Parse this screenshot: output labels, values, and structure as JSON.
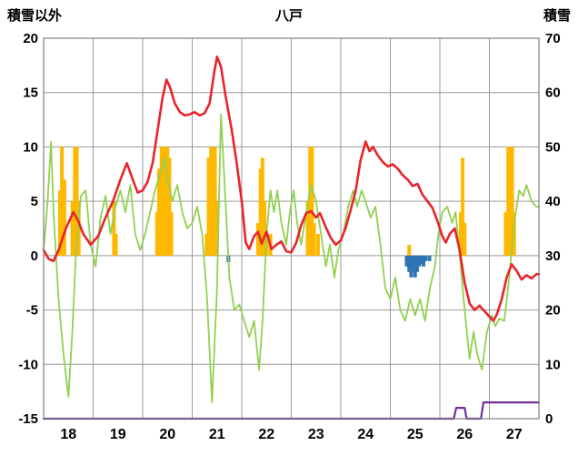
{
  "header": {
    "left_axis_title": "積雪以外",
    "chart_title": "八戸",
    "right_axis_title": "積雪"
  },
  "chart_data": {
    "type": "line",
    "title": "八戸",
    "grid": true,
    "legend": "none",
    "left_axis": {
      "label": "積雪以外",
      "min": -15,
      "max": 20,
      "ticks": [
        20,
        15,
        10,
        5,
        0,
        -5,
        -10,
        -15
      ]
    },
    "right_axis": {
      "label": "積雪",
      "min": 0,
      "max": 70,
      "ticks": [
        70,
        60,
        50,
        40,
        30,
        20,
        10,
        0
      ]
    },
    "x_axis": {
      "min": 18,
      "max": 28,
      "tick_labels": [
        "18",
        "19",
        "20",
        "21",
        "22",
        "23",
        "24",
        "25",
        "26",
        "27"
      ]
    },
    "colors": {
      "grid": "#999999",
      "frame": "#808080",
      "text": "#000000"
    },
    "series": [
      {
        "name": "orange-bars",
        "type": "bar",
        "direction": "up",
        "axis": "left",
        "color": "#ffb800",
        "points": [
          [
            18.33,
            6
          ],
          [
            18.37,
            10
          ],
          [
            18.42,
            7
          ],
          [
            18.58,
            5
          ],
          [
            18.63,
            10
          ],
          [
            18.67,
            10
          ],
          [
            18.71,
            5
          ],
          [
            19.42,
            5
          ],
          [
            19.46,
            2
          ],
          [
            20.29,
            4
          ],
          [
            20.33,
            8
          ],
          [
            20.38,
            10
          ],
          [
            20.42,
            10
          ],
          [
            20.46,
            10
          ],
          [
            20.5,
            10
          ],
          [
            20.54,
            9
          ],
          [
            20.58,
            4
          ],
          [
            21.29,
            2
          ],
          [
            21.33,
            9
          ],
          [
            21.38,
            10
          ],
          [
            21.42,
            10
          ],
          [
            21.46,
            10
          ],
          [
            21.5,
            5
          ],
          [
            22.33,
            3
          ],
          [
            22.38,
            8
          ],
          [
            22.42,
            9
          ],
          [
            22.46,
            5
          ],
          [
            22.5,
            2
          ],
          [
            22.58,
            2
          ],
          [
            23.33,
            5
          ],
          [
            23.38,
            10
          ],
          [
            23.42,
            10
          ],
          [
            23.46,
            3
          ],
          [
            23.54,
            2
          ],
          [
            25.38,
            1
          ],
          [
            26.42,
            4
          ],
          [
            26.46,
            9
          ],
          [
            26.5,
            3
          ],
          [
            27.33,
            4
          ],
          [
            27.38,
            10
          ],
          [
            27.42,
            10
          ],
          [
            27.46,
            10
          ],
          [
            27.5,
            4
          ]
        ]
      },
      {
        "name": "blue-bars",
        "type": "bar",
        "direction": "down",
        "axis": "left",
        "color": "#2e75b6",
        "points": [
          [
            21.73,
            0.6
          ],
          [
            25.33,
            1
          ],
          [
            25.38,
            1.5
          ],
          [
            25.42,
            2
          ],
          [
            25.46,
            1.5
          ],
          [
            25.5,
            2
          ],
          [
            25.54,
            1.5
          ],
          [
            25.58,
            1
          ],
          [
            25.63,
            0.8
          ],
          [
            25.67,
            1
          ],
          [
            25.71,
            0.5
          ],
          [
            25.79,
            0.5
          ]
        ]
      },
      {
        "name": "green-line",
        "type": "line",
        "axis": "left",
        "color": "#92d050",
        "width": 1.8,
        "points": [
          [
            18.0,
            0.5
          ],
          [
            18.08,
            5
          ],
          [
            18.15,
            10.5
          ],
          [
            18.2,
            4
          ],
          [
            18.3,
            -4
          ],
          [
            18.4,
            -9
          ],
          [
            18.5,
            -13
          ],
          [
            18.58,
            -7
          ],
          [
            18.65,
            0
          ],
          [
            18.75,
            5.5
          ],
          [
            18.85,
            6
          ],
          [
            18.95,
            1
          ],
          [
            19.05,
            -1
          ],
          [
            19.15,
            3.5
          ],
          [
            19.25,
            5.5
          ],
          [
            19.35,
            2
          ],
          [
            19.45,
            4.5
          ],
          [
            19.55,
            6
          ],
          [
            19.65,
            4
          ],
          [
            19.75,
            6.5
          ],
          [
            19.85,
            2
          ],
          [
            19.95,
            0.5
          ],
          [
            20.05,
            2
          ],
          [
            20.15,
            4
          ],
          [
            20.25,
            6
          ],
          [
            20.35,
            7.5
          ],
          [
            20.45,
            9
          ],
          [
            20.5,
            7
          ],
          [
            20.6,
            5
          ],
          [
            20.7,
            6.5
          ],
          [
            20.8,
            4
          ],
          [
            20.9,
            2.5
          ],
          [
            21.0,
            3
          ],
          [
            21.1,
            4.5
          ],
          [
            21.2,
            2
          ],
          [
            21.3,
            -4
          ],
          [
            21.4,
            -13.5
          ],
          [
            21.5,
            -3
          ],
          [
            21.58,
            13
          ],
          [
            21.65,
            7
          ],
          [
            21.75,
            -2
          ],
          [
            21.85,
            -5
          ],
          [
            21.95,
            -4.5
          ],
          [
            22.05,
            -6
          ],
          [
            22.15,
            -7.5
          ],
          [
            22.25,
            -6
          ],
          [
            22.35,
            -10.5
          ],
          [
            22.42,
            -6
          ],
          [
            22.5,
            2
          ],
          [
            22.58,
            6
          ],
          [
            22.65,
            4
          ],
          [
            22.72,
            6
          ],
          [
            22.8,
            3
          ],
          [
            22.9,
            1
          ],
          [
            22.97,
            4
          ],
          [
            23.05,
            6
          ],
          [
            23.12,
            3
          ],
          [
            23.2,
            1
          ],
          [
            23.3,
            4
          ],
          [
            23.4,
            6.5
          ],
          [
            23.5,
            5
          ],
          [
            23.6,
            2
          ],
          [
            23.7,
            -1
          ],
          [
            23.78,
            1
          ],
          [
            23.87,
            -2
          ],
          [
            23.95,
            0.5
          ],
          [
            24.05,
            2
          ],
          [
            24.15,
            4.5
          ],
          [
            24.25,
            6
          ],
          [
            24.33,
            4.5
          ],
          [
            24.42,
            6
          ],
          [
            24.5,
            5
          ],
          [
            24.6,
            3.5
          ],
          [
            24.7,
            4.5
          ],
          [
            24.8,
            1
          ],
          [
            24.9,
            -3
          ],
          [
            25.0,
            -4
          ],
          [
            25.1,
            -2
          ],
          [
            25.2,
            -5
          ],
          [
            25.3,
            -6
          ],
          [
            25.4,
            -4
          ],
          [
            25.5,
            -5.5
          ],
          [
            25.6,
            -4
          ],
          [
            25.7,
            -6
          ],
          [
            25.8,
            -3
          ],
          [
            25.9,
            -1
          ],
          [
            25.97,
            2
          ],
          [
            26.05,
            4
          ],
          [
            26.15,
            4.5
          ],
          [
            26.25,
            3
          ],
          [
            26.32,
            4
          ],
          [
            26.4,
            0
          ],
          [
            26.5,
            -5
          ],
          [
            26.6,
            -9.5
          ],
          [
            26.68,
            -7
          ],
          [
            26.75,
            -9
          ],
          [
            26.85,
            -10.5
          ],
          [
            26.95,
            -7
          ],
          [
            27.05,
            -5.5
          ],
          [
            27.12,
            -6.5
          ],
          [
            27.2,
            -5.8
          ],
          [
            27.3,
            -6
          ],
          [
            27.4,
            -2
          ],
          [
            27.5,
            3
          ],
          [
            27.6,
            6
          ],
          [
            27.68,
            5.5
          ],
          [
            27.75,
            6.5
          ],
          [
            27.85,
            5
          ],
          [
            27.95,
            4.5
          ],
          [
            28.0,
            4.5
          ]
        ]
      },
      {
        "name": "red-line",
        "type": "line",
        "axis": "left",
        "color": "#e8242c",
        "width": 2.6,
        "points": [
          [
            18.0,
            0.5
          ],
          [
            18.1,
            -0.3
          ],
          [
            18.2,
            -0.5
          ],
          [
            18.3,
            0.5
          ],
          [
            18.45,
            2.5
          ],
          [
            18.6,
            4.0
          ],
          [
            18.7,
            3.2
          ],
          [
            18.8,
            2.0
          ],
          [
            18.95,
            1.0
          ],
          [
            19.1,
            1.8
          ],
          [
            19.25,
            3.5
          ],
          [
            19.4,
            5.0
          ],
          [
            19.55,
            7.0
          ],
          [
            19.68,
            8.5
          ],
          [
            19.8,
            7.0
          ],
          [
            19.9,
            5.8
          ],
          [
            20.0,
            6.0
          ],
          [
            20.1,
            6.8
          ],
          [
            20.2,
            8.5
          ],
          [
            20.3,
            11.5
          ],
          [
            20.4,
            14.5
          ],
          [
            20.48,
            16.2
          ],
          [
            20.55,
            15.5
          ],
          [
            20.65,
            14.0
          ],
          [
            20.75,
            13.2
          ],
          [
            20.85,
            12.9
          ],
          [
            20.95,
            13.0
          ],
          [
            21.05,
            13.2
          ],
          [
            21.15,
            12.9
          ],
          [
            21.25,
            13.1
          ],
          [
            21.35,
            14.0
          ],
          [
            21.45,
            17.0
          ],
          [
            21.5,
            18.3
          ],
          [
            21.58,
            17.4
          ],
          [
            21.68,
            14.5
          ],
          [
            21.8,
            11.5
          ],
          [
            21.9,
            8.5
          ],
          [
            22.0,
            5.0
          ],
          [
            22.08,
            1.2
          ],
          [
            22.15,
            0.6
          ],
          [
            22.25,
            1.8
          ],
          [
            22.33,
            2.2
          ],
          [
            22.4,
            1.1
          ],
          [
            22.5,
            2.2
          ],
          [
            22.6,
            0.6
          ],
          [
            22.7,
            1.0
          ],
          [
            22.8,
            1.3
          ],
          [
            22.9,
            0.4
          ],
          [
            23.0,
            0.3
          ],
          [
            23.1,
            1.2
          ],
          [
            23.2,
            2.8
          ],
          [
            23.3,
            3.9
          ],
          [
            23.4,
            4.1
          ],
          [
            23.5,
            3.5
          ],
          [
            23.58,
            3.9
          ],
          [
            23.7,
            2.6
          ],
          [
            23.8,
            1.6
          ],
          [
            23.9,
            1.0
          ],
          [
            24.0,
            1.4
          ],
          [
            24.1,
            2.6
          ],
          [
            24.2,
            4.2
          ],
          [
            24.3,
            6.0
          ],
          [
            24.4,
            8.8
          ],
          [
            24.5,
            10.5
          ],
          [
            24.58,
            9.6
          ],
          [
            24.65,
            10.0
          ],
          [
            24.75,
            9.2
          ],
          [
            24.85,
            8.6
          ],
          [
            24.95,
            8.2
          ],
          [
            25.05,
            8.4
          ],
          [
            25.15,
            8.0
          ],
          [
            25.25,
            7.4
          ],
          [
            25.35,
            7.0
          ],
          [
            25.45,
            6.4
          ],
          [
            25.55,
            6.6
          ],
          [
            25.65,
            5.6
          ],
          [
            25.75,
            5.0
          ],
          [
            25.85,
            4.4
          ],
          [
            25.95,
            3.2
          ],
          [
            26.05,
            1.8
          ],
          [
            26.12,
            1.2
          ],
          [
            26.2,
            2.0
          ],
          [
            26.3,
            2.5
          ],
          [
            26.4,
            0.5
          ],
          [
            26.5,
            -2.5
          ],
          [
            26.6,
            -4.4
          ],
          [
            26.7,
            -5.0
          ],
          [
            26.8,
            -4.6
          ],
          [
            26.9,
            -5.1
          ],
          [
            27.0,
            -5.6
          ],
          [
            27.08,
            -6.0
          ],
          [
            27.15,
            -5.4
          ],
          [
            27.25,
            -4.0
          ],
          [
            27.35,
            -2.0
          ],
          [
            27.45,
            -0.8
          ],
          [
            27.55,
            -1.4
          ],
          [
            27.65,
            -2.2
          ],
          [
            27.75,
            -1.8
          ],
          [
            27.85,
            -2.1
          ],
          [
            27.95,
            -1.7
          ],
          [
            28.0,
            -1.7
          ]
        ]
      },
      {
        "name": "purple-line",
        "type": "line",
        "axis": "right",
        "color": "#7030a0",
        "width": 2.2,
        "points": [
          [
            18.0,
            0
          ],
          [
            26.28,
            0
          ],
          [
            26.33,
            2
          ],
          [
            26.5,
            2
          ],
          [
            26.54,
            0
          ],
          [
            26.83,
            0
          ],
          [
            26.88,
            3
          ],
          [
            28.0,
            3
          ]
        ]
      }
    ]
  }
}
